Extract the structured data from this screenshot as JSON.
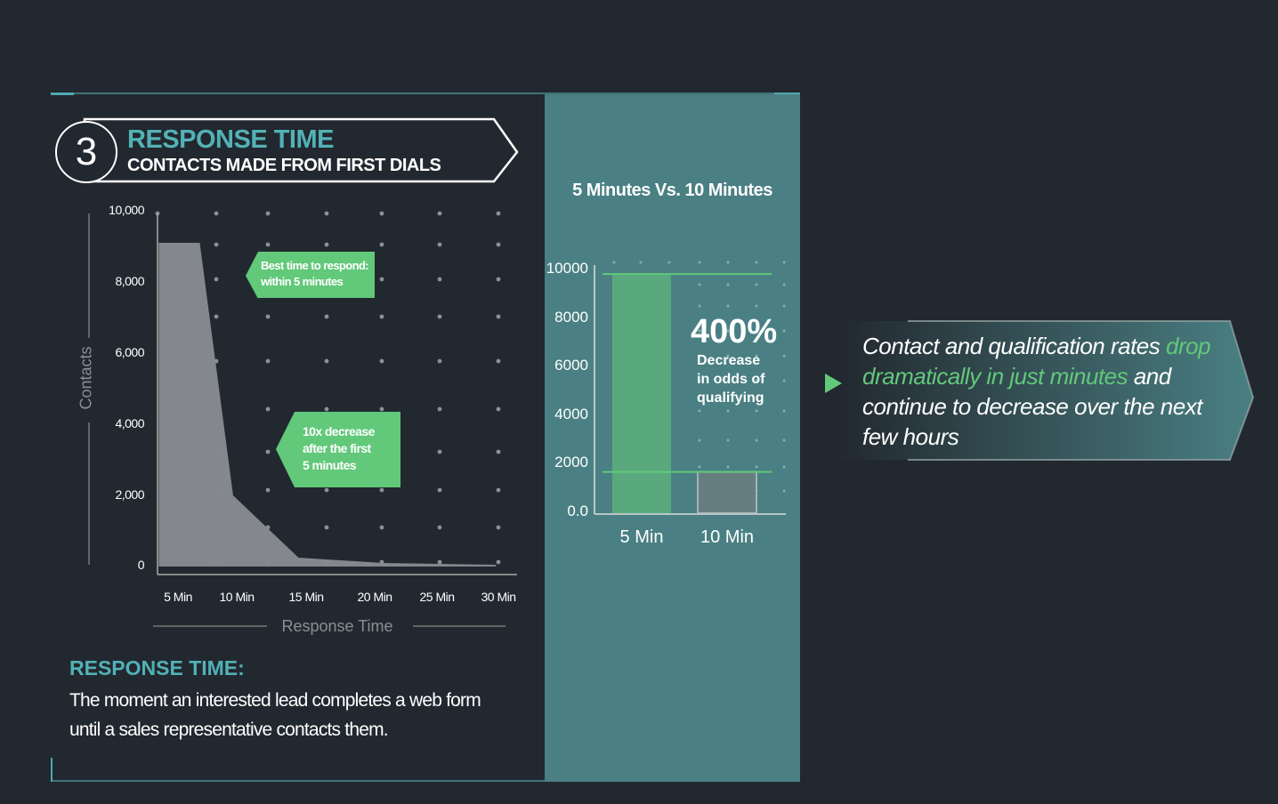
{
  "header": {
    "number": "3",
    "title": "RESPONSE TIME",
    "subtitle": "CONTACTS MADE FROM FIRST DIALS"
  },
  "colors": {
    "background": "#22282f",
    "panel": "#4a8083",
    "accent_teal": "#52b2b6",
    "accent_green": "#62c87a",
    "area": "#878a8e"
  },
  "callouts": {
    "best_time": [
      "Best time to respond:",
      "within 5 minutes"
    ],
    "decrease": [
      "10x decrease",
      "after the first",
      "5 minutes"
    ]
  },
  "chart_data": [
    {
      "type": "area",
      "xlabel": "Response Time",
      "ylabel": "Contacts",
      "x_ticks": [
        "5 Min",
        "10 Min",
        "15 Min",
        "20 Min",
        "25 Min",
        "30 Min"
      ],
      "y_ticks": [
        "0",
        "2,000",
        "4,000",
        "6,000",
        "8,000",
        "10,000"
      ],
      "ylim": [
        0,
        10000
      ],
      "xlim_minutes": [
        5,
        30
      ],
      "points": [
        {
          "x": 3.5,
          "y": 9100
        },
        {
          "x": 6.7,
          "y": 9100
        },
        {
          "x": 9.3,
          "y": 2000
        },
        {
          "x": 14.4,
          "y": 250
        },
        {
          "x": 21,
          "y": 100
        },
        {
          "x": 29.8,
          "y": 50
        }
      ],
      "grid": "dots"
    },
    {
      "type": "bar",
      "title": "5 Minutes Vs. 10 Minutes",
      "categories": [
        "5 Min",
        "10 Min"
      ],
      "values": [
        9850,
        1700
      ],
      "y_ticks": [
        "0.0",
        "2000",
        "4000",
        "6000",
        "8000",
        "10000"
      ],
      "ylim": [
        0,
        10000
      ],
      "annotation": {
        "value": "400%",
        "text": [
          "Decrease",
          "in odds of",
          "qualifying"
        ]
      },
      "grid": "dots"
    }
  ],
  "note": {
    "title": "RESPONSE TIME:",
    "body": "The moment an interested lead completes a web form until a sales representative contacts them."
  },
  "takeaway": {
    "part1": "Contact and qualification rates ",
    "highlight": "drop dramatically in just minutes",
    "part2": " and continue to  decrease over the next few hours"
  }
}
